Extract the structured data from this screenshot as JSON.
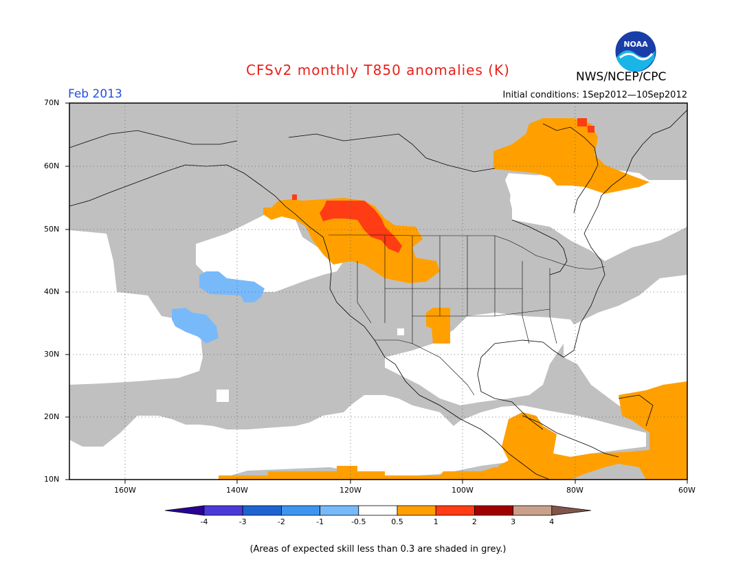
{
  "header": {
    "title": "CFSv2 monthly T850 anomalies (K)",
    "org": "NWS/NCEP/CPC",
    "period": "Feb 2013",
    "initial_conditions": "Initial conditions: 1Sep2012—10Sep2012"
  },
  "logo": {
    "text": "NOAA"
  },
  "map": {
    "lat_labels": [
      "70N",
      "60N",
      "50N",
      "40N",
      "30N",
      "20N",
      "10N"
    ],
    "lon_labels": [
      "160W",
      "140W",
      "120W",
      "100W",
      "80W",
      "60W"
    ]
  },
  "colorbar": {
    "labels": [
      "-4",
      "-3",
      "-2",
      "-1",
      "-0.5",
      "0.5",
      "1",
      "2",
      "3",
      "4"
    ],
    "colors": [
      "#2b0094",
      "#4a3bd8",
      "#1e64d2",
      "#3c96f0",
      "#78b9fa",
      "#ffffff",
      "#ffa000",
      "#ff3c14",
      "#a00000",
      "#c8a08c",
      "#82554b"
    ]
  },
  "colors": {
    "grey": "#c0c0c0",
    "positive_05_1": "#ffa000",
    "positive_1_2": "#ff3c14",
    "negative_1_05": "#78b9fa"
  },
  "footnote": "(Areas of expected skill less than 0.3 are shaded in grey.)"
}
